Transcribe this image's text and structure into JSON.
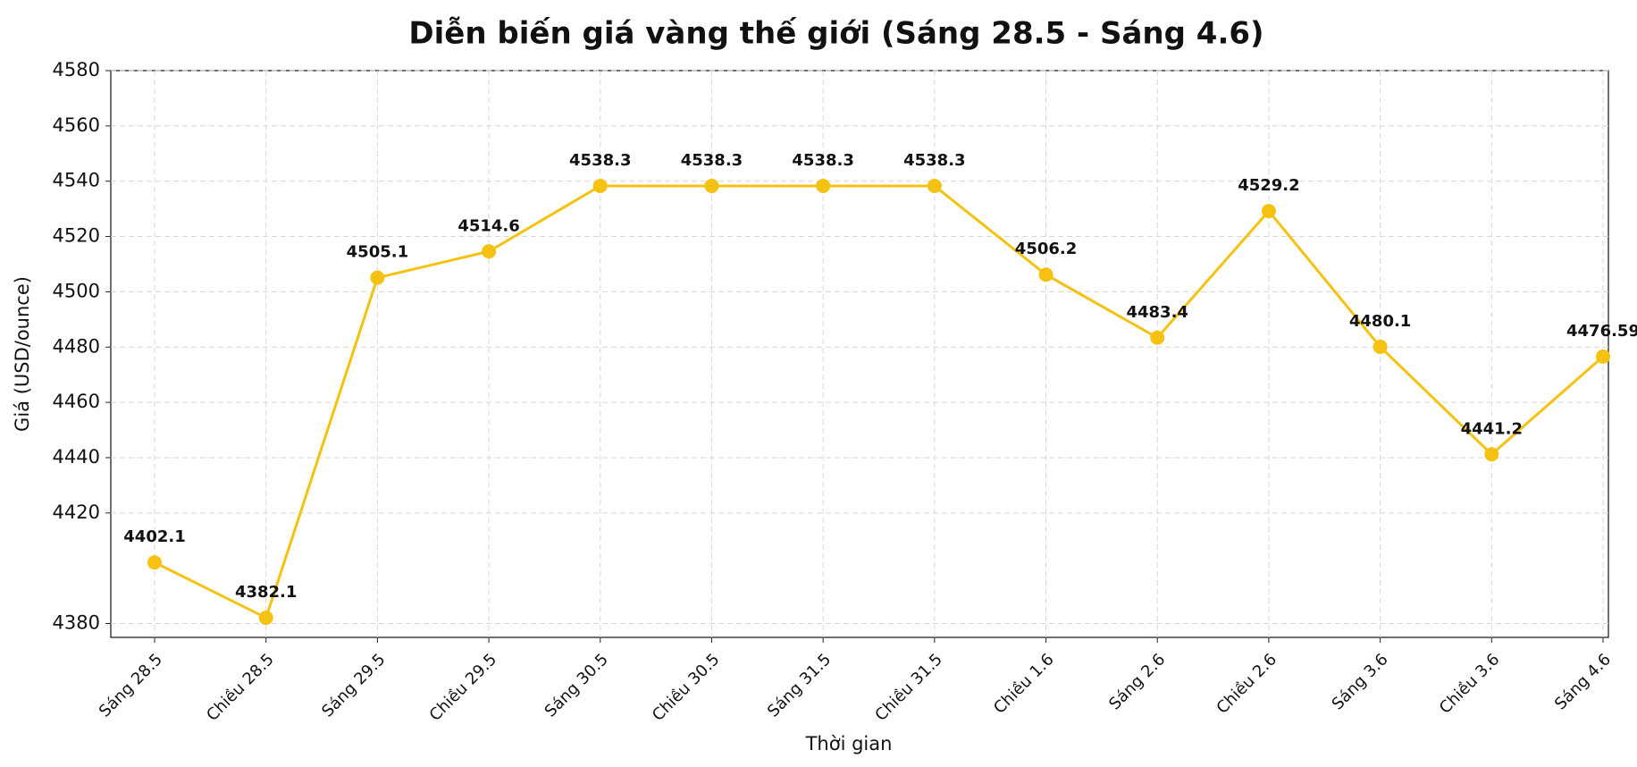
{
  "chart_data": {
    "type": "line",
    "title": "Diễn biến giá vàng thế giới (Sáng 28.5 - Sáng 4.6)",
    "x_label": "Thời gian",
    "y_label": "Giá (USD/ounce)",
    "categories": [
      "Sáng 28.5",
      "Chiều 28.5",
      "Sáng 29.5",
      "Chiều 29.5",
      "Sáng 30.5",
      "Chiều 30.5",
      "Sáng 31.5",
      "Chiều 31.5",
      "Chiều 1.6",
      "Sáng 2.6",
      "Chiều 2.6",
      "Sáng 3.6",
      "Chiều 3.6",
      "Sáng 4.6"
    ],
    "values": [
      4402.1,
      4382.1,
      4505.1,
      4514.6,
      4538.3,
      4538.3,
      4538.3,
      4538.3,
      4506.2,
      4483.4,
      4529.2,
      4480.1,
      4441.2,
      4476.59
    ],
    "color": "#f5c211",
    "ylim": [
      4375,
      4580
    ],
    "yticks": [
      4380,
      4420,
      4440,
      4460,
      4480,
      4500,
      4520,
      4540,
      4560,
      4580
    ],
    "grid": true
  }
}
